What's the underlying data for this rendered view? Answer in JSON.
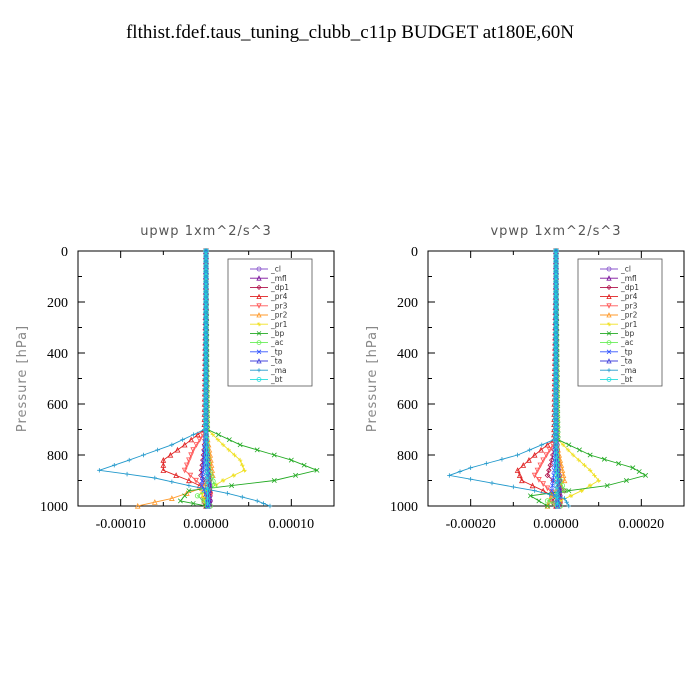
{
  "title": "flthist.fdef.taus_tuning_clubb_c11p  BUDGET at180E,60N",
  "legend_entries": [
    "_cl",
    "_mfl",
    "_dp1",
    "_pr4",
    "_pr3",
    "_pr2",
    "_pr1",
    "_bp",
    "_ac",
    "_tp",
    "_ta",
    "_ma",
    "_bt"
  ],
  "colors": {
    "_cl": "#8855cc",
    "_mfl": "#7a0f9a",
    "_dp1": "#b0104a",
    "_pr4": "#e02020",
    "_pr3": "#ff5555",
    "_pr2": "#ff9a2a",
    "_pr1": "#f0e020",
    "_bp": "#22aa22",
    "_ac": "#66ee55",
    "_tp": "#3355ff",
    "_ta": "#4444dd",
    "_ma": "#2299cc",
    "_bt": "#22dddd"
  },
  "chart_data": [
    {
      "type": "line",
      "title": "upwp   1xm^2/s^3",
      "ylabel": "Pressure  [hPa]",
      "xlabel": "",
      "xlim": [
        -0.00015,
        0.00015
      ],
      "ylim": [
        1000,
        0
      ],
      "xticks": [
        "-0.00010",
        "0.00000",
        "0.00010"
      ],
      "xtick_values": [
        -0.0001,
        0.0,
        0.0001
      ],
      "yticks": [
        "0",
        "200",
        "400",
        "600",
        "800",
        "1000"
      ],
      "ytick_values": [
        0,
        200,
        400,
        600,
        800,
        1000
      ],
      "legend_position": "top-right",
      "series": [
        {
          "name": "_mfl",
          "y": [
            0,
            200,
            400,
            600,
            700,
            800,
            900,
            1000
          ],
          "x": [
            0,
            0,
            0,
            0,
            0,
            2e-06,
            4e-06,
            5e-06
          ]
        },
        {
          "name": "_cl",
          "y": [
            0,
            600,
            800,
            900,
            1000
          ],
          "x": [
            0,
            0,
            1e-06,
            2e-06,
            1e-06
          ]
        },
        {
          "name": "_dp1",
          "y": [
            0,
            700,
            800,
            880,
            930,
            970,
            1000
          ],
          "x": [
            0,
            0,
            -3e-06,
            -6e-06,
            4e-06,
            -4e-06,
            0
          ]
        },
        {
          "name": "_pr4",
          "y": [
            0,
            700,
            760,
            820,
            860,
            900,
            940,
            980,
            1000
          ],
          "x": [
            0,
            -2e-06,
            -2.5e-05,
            -5e-05,
            -5e-05,
            -2e-05,
            5e-06,
            -2e-06,
            0
          ]
        },
        {
          "name": "_pr3",
          "y": [
            0,
            700,
            780,
            860,
            920,
            960,
            1000
          ],
          "x": [
            0,
            0,
            -1.5e-05,
            -2.5e-05,
            -5e-06,
            5e-06,
            0
          ]
        },
        {
          "name": "_pr2",
          "y": [
            0,
            700,
            800,
            880,
            930,
            970,
            1000
          ],
          "x": [
            0,
            0,
            5e-06,
            8e-06,
            -5e-06,
            -4e-05,
            -8e-05
          ]
        },
        {
          "name": "_pr1",
          "y": [
            0,
            700,
            760,
            820,
            860,
            900,
            950,
            1000
          ],
          "x": [
            0,
            2e-06,
            2e-05,
            4e-05,
            4.5e-05,
            2e-05,
            -5e-06,
            0
          ]
        },
        {
          "name": "_bp",
          "y": [
            0,
            700,
            760,
            820,
            860,
            900,
            940,
            980,
            1000
          ],
          "x": [
            0,
            2e-06,
            4e-05,
            0.0001,
            0.00013,
            8e-05,
            -2e-05,
            -3e-05,
            0
          ]
        },
        {
          "name": "_ac",
          "y": [
            0,
            700,
            850,
            920,
            960,
            1000
          ],
          "x": [
            0,
            0,
            3e-06,
            1e-05,
            -1e-05,
            5e-06
          ]
        },
        {
          "name": "_tp",
          "y": [
            0,
            700,
            850,
            920,
            970,
            1000
          ],
          "x": [
            0,
            0,
            -3e-06,
            -5e-06,
            3e-06,
            2e-06
          ]
        },
        {
          "name": "_ta",
          "y": [
            0,
            700,
            850,
            920,
            1000
          ],
          "x": [
            0,
            0,
            2e-06,
            4e-06,
            2e-06
          ]
        },
        {
          "name": "_ma",
          "y": [
            0,
            700,
            760,
            820,
            860,
            890,
            920,
            950,
            980,
            1000
          ],
          "x": [
            0,
            -2e-06,
            -4e-05,
            -9e-05,
            -0.000125,
            -6e-05,
            -2e-05,
            2.5e-05,
            6e-05,
            7.5e-05
          ]
        },
        {
          "name": "_bt",
          "y": [
            0,
            700,
            1000
          ],
          "x": [
            0,
            0,
            2e-06
          ]
        }
      ]
    },
    {
      "type": "line",
      "title": "vpwp   1xm^2/s^3",
      "ylabel": "Pressure  [hPa]",
      "xlabel": "",
      "xlim": [
        -0.0003,
        0.0003
      ],
      "ylim": [
        1000,
        0
      ],
      "xticks": [
        "-0.00020",
        "0.00000",
        "0.00020"
      ],
      "xtick_values": [
        -0.0002,
        0.0,
        0.0002
      ],
      "yticks": [
        "0",
        "200",
        "400",
        "600",
        "800",
        "1000"
      ],
      "ytick_values": [
        0,
        200,
        400,
        600,
        800,
        1000
      ],
      "legend_position": "top-right",
      "series": [
        {
          "name": "_mfl",
          "y": [
            0,
            200,
            400,
            600,
            700,
            800,
            900,
            1000
          ],
          "x": [
            0,
            0,
            0,
            0,
            0,
            4e-06,
            8e-06,
            1e-05
          ]
        },
        {
          "name": "_cl",
          "y": [
            0,
            600,
            800,
            900,
            1000
          ],
          "x": [
            0,
            0,
            2e-06,
            4e-06,
            2e-06
          ]
        },
        {
          "name": "_dp1",
          "y": [
            0,
            740,
            820,
            880,
            940,
            980,
            1000
          ],
          "x": [
            0,
            0,
            -1e-05,
            -2e-05,
            2e-05,
            -1e-05,
            0
          ]
        },
        {
          "name": "_pr4",
          "y": [
            0,
            740,
            800,
            860,
            900,
            940,
            980,
            1000
          ],
          "x": [
            0,
            -5e-06,
            -5e-05,
            -9e-05,
            -8e-05,
            -3e-05,
            1e-05,
            0
          ]
        },
        {
          "name": "_pr3",
          "y": [
            0,
            740,
            820,
            880,
            930,
            980,
            1000
          ],
          "x": [
            0,
            0,
            -3e-05,
            -5e-05,
            -2e-05,
            1e-05,
            0
          ]
        },
        {
          "name": "_pr2",
          "y": [
            0,
            740,
            820,
            900,
            960,
            1000
          ],
          "x": [
            0,
            0,
            1e-05,
            2e-05,
            -1e-05,
            -2e-05
          ]
        },
        {
          "name": "_pr1",
          "y": [
            0,
            740,
            800,
            860,
            900,
            940,
            980,
            1000
          ],
          "x": [
            0,
            5e-06,
            4e-05,
            8e-05,
            0.0001,
            6e-05,
            1e-05,
            0
          ]
        },
        {
          "name": "_bp",
          "y": [
            0,
            740,
            800,
            850,
            880,
            920,
            960,
            1000
          ],
          "x": [
            0,
            5e-06,
            8e-05,
            0.00018,
            0.00021,
            0.00012,
            -6e-05,
            -2e-05
          ]
        },
        {
          "name": "_ac",
          "y": [
            0,
            740,
            880,
            940,
            980,
            1000
          ],
          "x": [
            0,
            0,
            5e-06,
            2e-05,
            -2e-05,
            1e-05
          ]
        },
        {
          "name": "_tp",
          "y": [
            0,
            740,
            880,
            940,
            980,
            1000
          ],
          "x": [
            0,
            0,
            -5e-06,
            -1e-05,
            5e-06,
            3e-06
          ]
        },
        {
          "name": "_ta",
          "y": [
            0,
            740,
            880,
            940,
            1000
          ],
          "x": [
            0,
            0,
            4e-06,
            8e-06,
            4e-06
          ]
        },
        {
          "name": "_ma",
          "y": [
            0,
            740,
            800,
            850,
            880,
            910,
            940,
            970,
            1000
          ],
          "x": [
            0,
            -5e-06,
            -9e-05,
            -0.0002,
            -0.00025,
            -0.00015,
            -5e-05,
            2e-05,
            3e-05
          ]
        },
        {
          "name": "_bt",
          "y": [
            0,
            740,
            1000
          ],
          "x": [
            0,
            0,
            3e-06
          ]
        }
      ]
    }
  ]
}
